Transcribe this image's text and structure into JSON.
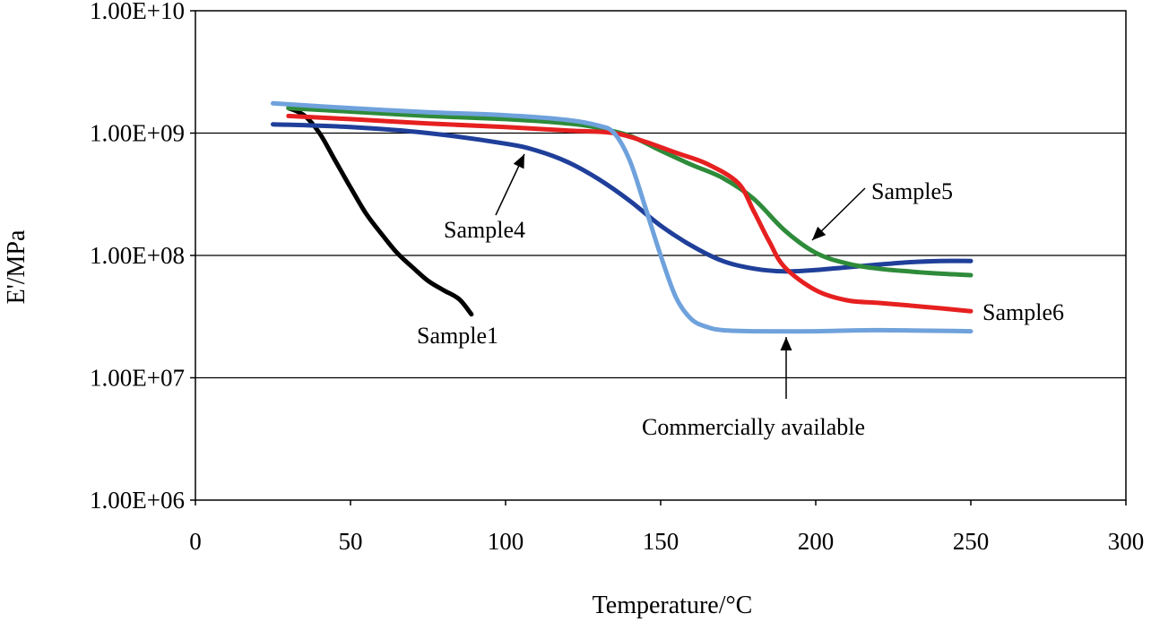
{
  "chart_data": {
    "type": "line",
    "title": "",
    "xlabel": "Temperature/°C",
    "ylabel": "E'/MPa",
    "xlim": [
      0,
      300
    ],
    "ylim": [
      1000000,
      10000000000
    ],
    "yscale": "log",
    "x_ticks": [
      0,
      50,
      100,
      150,
      200,
      250,
      300
    ],
    "x_tick_labels": [
      "0",
      "50",
      "100",
      "150",
      "200",
      "250",
      "300"
    ],
    "y_ticks": [
      1000000,
      10000000,
      100000000,
      1000000000,
      10000000000
    ],
    "y_tick_labels": [
      "1.00E+06",
      "1.00E+07",
      "1.00E+08",
      "1.00E+09",
      "1.00E+10"
    ],
    "gridlines": "horizontal",
    "series": [
      {
        "name": "Sample1",
        "color": "#000000",
        "x": [
          30,
          35,
          40,
          45,
          50,
          55,
          60,
          65,
          70,
          75,
          80,
          85,
          89
        ],
        "y": [
          1600000000.0,
          1400000000.0,
          1000000000.0,
          600000000.0,
          360000000.0,
          220000000.0,
          150000000.0,
          105000000.0,
          80000000.0,
          62000000.0,
          52000000.0,
          44000000.0,
          33000000.0
        ]
      },
      {
        "name": "Sample4",
        "color": "#1f3f9a",
        "x": [
          25,
          50,
          75,
          100,
          110,
          120,
          130,
          140,
          150,
          160,
          170,
          180,
          190,
          200,
          210,
          220,
          230,
          240,
          250
        ],
        "y": [
          1180000000.0,
          1120000000.0,
          1000000000.0,
          820000000.0,
          720000000.0,
          580000000.0,
          420000000.0,
          280000000.0,
          175000000.0,
          120000000.0,
          90000000.0,
          78000000.0,
          74000000.0,
          76000000.0,
          80000000.0,
          84000000.0,
          88000000.0,
          90000000.0,
          90000000.0
        ]
      },
      {
        "name": "Sample5",
        "color": "#2e8b3a",
        "x": [
          30,
          50,
          75,
          100,
          120,
          130,
          140,
          150,
          160,
          170,
          180,
          190,
          200,
          210,
          220,
          230,
          240,
          250
        ],
        "y": [
          1600000000.0,
          1500000000.0,
          1380000000.0,
          1300000000.0,
          1200000000.0,
          1100000000.0,
          950000000.0,
          720000000.0,
          550000000.0,
          430000000.0,
          290000000.0,
          160000000.0,
          105000000.0,
          86000000.0,
          78000000.0,
          74000000.0,
          71000000.0,
          69000000.0
        ]
      },
      {
        "name": "Sample6",
        "color": "#e62020",
        "x": [
          30,
          50,
          75,
          100,
          120,
          135,
          145,
          155,
          165,
          175,
          180,
          185,
          190,
          200,
          210,
          220,
          230,
          240,
          250
        ],
        "y": [
          1380000000.0,
          1300000000.0,
          1200000000.0,
          1120000000.0,
          1050000000.0,
          1000000000.0,
          850000000.0,
          690000000.0,
          560000000.0,
          390000000.0,
          230000000.0,
          130000000.0,
          80000000.0,
          52000000.0,
          43000000.0,
          41000000.0,
          39000000.0,
          37000000.0,
          35000000.0
        ]
      },
      {
        "name": "Commercially available",
        "color": "#6fa2dc",
        "x": [
          25,
          50,
          75,
          100,
          120,
          130,
          135,
          140,
          145,
          150,
          155,
          160,
          165,
          170,
          180,
          200,
          220,
          250
        ],
        "y": [
          1750000000.0,
          1600000000.0,
          1480000000.0,
          1400000000.0,
          1280000000.0,
          1150000000.0,
          1000000000.0,
          600000000.0,
          250000000.0,
          100000000.0,
          45000000.0,
          30000000.0,
          26000000.0,
          24500000.0,
          24000000.0,
          24000000.0,
          24500000.0,
          24000000.0
        ]
      }
    ],
    "annotations": [
      {
        "text": "Sample1",
        "series": "Sample1"
      },
      {
        "text": "Sample4",
        "series": "Sample4"
      },
      {
        "text": "Sample5",
        "series": "Sample5"
      },
      {
        "text": "Sample6",
        "series": "Sample6"
      },
      {
        "text": "Commercially available",
        "series": "Commercially available"
      }
    ]
  }
}
